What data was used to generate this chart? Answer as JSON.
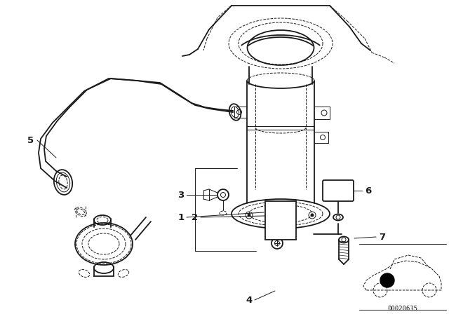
{
  "bg_color": "#ffffff",
  "line_color": "#1a1a1a",
  "label_color": "#111111",
  "catalog_number": "00020635",
  "figsize": [
    6.4,
    4.48
  ],
  "dpi": 100
}
